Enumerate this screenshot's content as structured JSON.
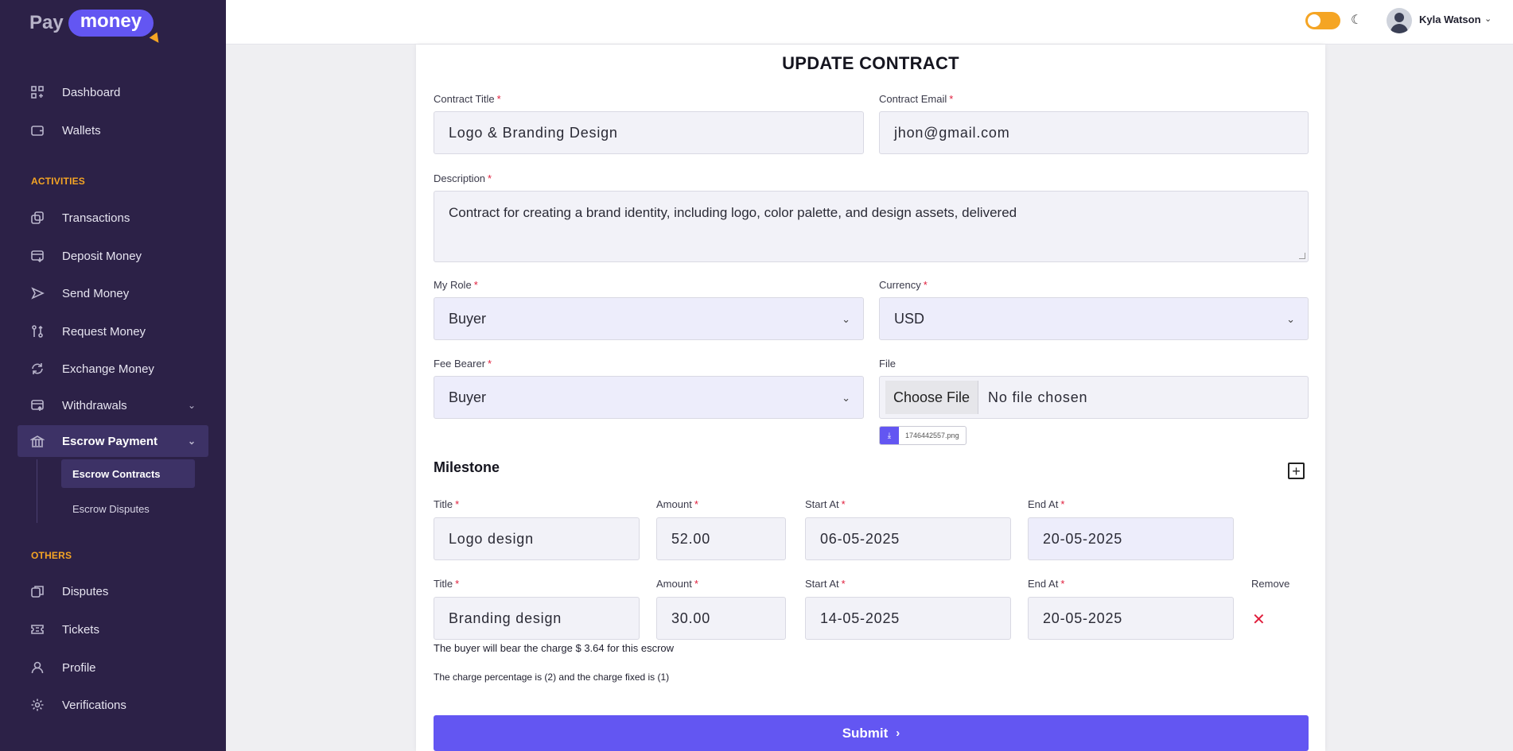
{
  "brand": {
    "part1": "Pay",
    "part2": "money"
  },
  "sidebar": {
    "items_top": [
      {
        "label": "Dashboard",
        "icon": "dashboard-icon"
      },
      {
        "label": "Wallets",
        "icon": "wallet-icon"
      }
    ],
    "section_activities": "ACTIVITIES",
    "items_activities": [
      {
        "label": "Transactions",
        "icon": "transactions-icon"
      },
      {
        "label": "Deposit Money",
        "icon": "deposit-icon"
      },
      {
        "label": "Send Money",
        "icon": "send-icon"
      },
      {
        "label": "Request Money",
        "icon": "request-icon"
      },
      {
        "label": "Exchange Money",
        "icon": "exchange-icon"
      },
      {
        "label": "Withdrawals",
        "icon": "withdraw-icon"
      },
      {
        "label": "Escrow Payment",
        "icon": "escrow-icon"
      }
    ],
    "sub_items": [
      {
        "label": "Escrow Contracts"
      },
      {
        "label": "Escrow Disputes"
      }
    ],
    "section_others": "OTHERS",
    "items_others": [
      {
        "label": "Disputes",
        "icon": "disputes-icon"
      },
      {
        "label": "Tickets",
        "icon": "ticket-icon"
      },
      {
        "label": "Profile",
        "icon": "user-icon"
      },
      {
        "label": "Verifications",
        "icon": "gear-icon"
      }
    ]
  },
  "header": {
    "username": "Kyla Watson"
  },
  "form": {
    "title": "UPDATE CONTRACT",
    "contract_title_label": "Contract Title",
    "contract_title_value": "Logo & Branding Design",
    "contract_email_label": "Contract Email",
    "contract_email_value": "jhon@gmail.com",
    "description_label": "Description",
    "description_value": "Contract for creating a brand identity, including logo, color palette, and design assets, delivered",
    "role_label": "My Role",
    "role_value": "Buyer",
    "currency_label": "Currency",
    "currency_value": "USD",
    "fee_bearer_label": "Fee Bearer",
    "fee_bearer_value": "Buyer",
    "file_label": "File",
    "file_button": "Choose File",
    "file_status": "No file chosen",
    "attached_file": "1746442557.png",
    "milestone_title": "Milestone",
    "milestone_labels": {
      "title": "Title",
      "amount": "Amount",
      "start": "Start At",
      "end": "End At",
      "remove": "Remove"
    },
    "milestones": [
      {
        "title": "Logo design",
        "amount": "52.00",
        "start": "06-05-2025",
        "end": "20-05-2025"
      },
      {
        "title": "Branding design",
        "amount": "30.00",
        "start": "14-05-2025",
        "end": "20-05-2025"
      }
    ],
    "note_charge": "The buyer will bear the charge $ 3.64 for this escrow",
    "note_percentage": "The charge percentage is (2) and the charge fixed is (1)",
    "submit_label": "Submit"
  },
  "colors": {
    "accent": "#6356f2",
    "sidebar_bg": "#2c2147",
    "section_label": "#f5a524",
    "required": "#e01e3c"
  }
}
